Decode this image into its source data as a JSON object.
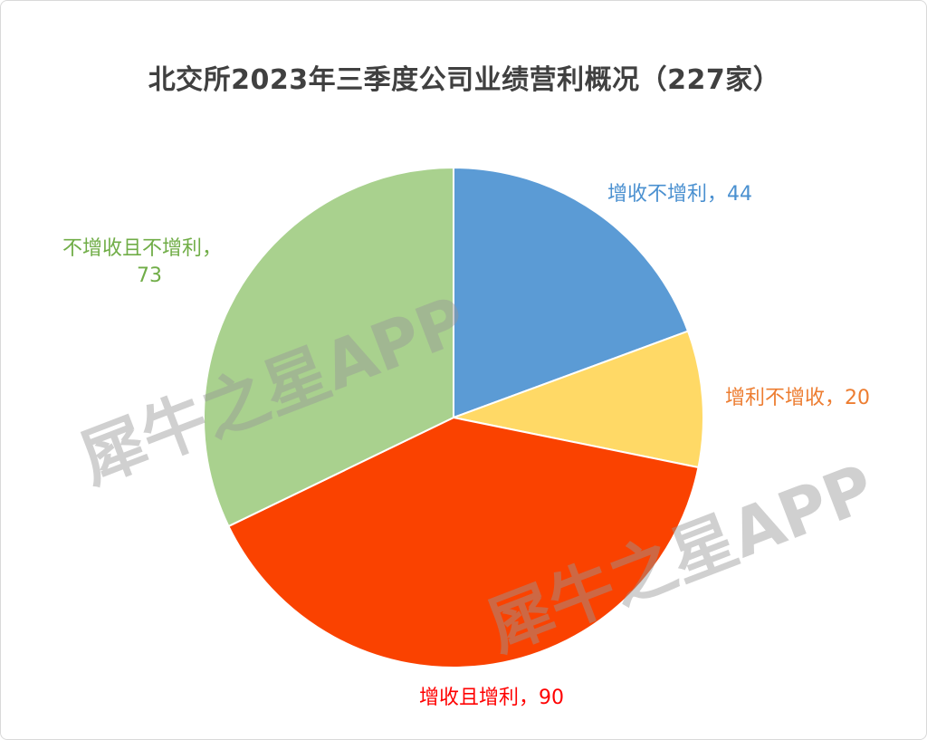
{
  "chart_data": {
    "type": "pie",
    "title": "北交所2023年三季度公司业绩营利概况（227家）",
    "total": 227,
    "slices": [
      {
        "label": "增收不增利",
        "value": 44,
        "color": "#5b9bd5",
        "label_color": "#4a90d0",
        "display": "增收不增利，44"
      },
      {
        "label": "增利不增收",
        "value": 20,
        "color": "#ffd966",
        "label_color": "#ed7d31",
        "display": "增利不增收，20"
      },
      {
        "label": "增收且增利",
        "value": 90,
        "color": "#fa4200",
        "label_color": "#ff0000",
        "display": "增收且增利，90"
      },
      {
        "label": "不增收且不增利",
        "value": 73,
        "color": "#a9d18e",
        "label_color": "#70ad47",
        "display": "不增收且不增利，",
        "display2": "73"
      }
    ]
  },
  "watermark": "犀牛之星APP"
}
